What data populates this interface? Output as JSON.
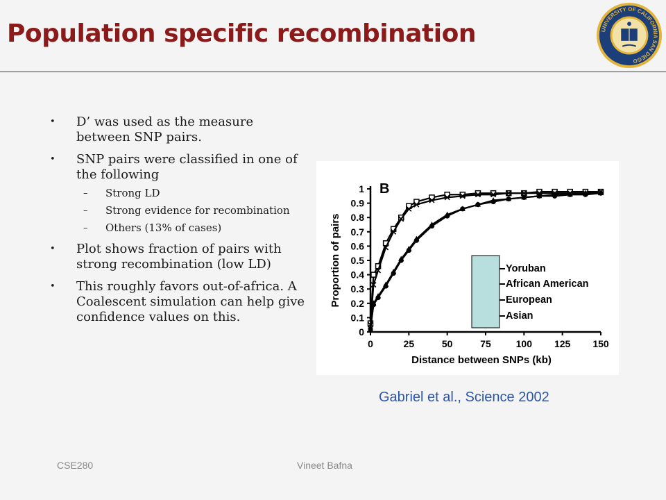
{
  "slide": {
    "title": "Population specific recombination",
    "logo_text": "UNIVERSITY OF CALIFORNIA SAN DIEGO",
    "bullets": [
      {
        "text": "D’ was used as the measure between SNP pairs."
      },
      {
        "text": "SNP pairs were classified in one of the following",
        "sub": [
          "Strong LD",
          "Strong evidence for recombination",
          "Others (13% of cases)"
        ]
      },
      {
        "text": "Plot shows fraction of pairs with strong recombination (low LD)"
      },
      {
        "text": "This roughly favors out-of-africa. A Coalescent simulation can help give confidence values on this."
      }
    ],
    "citation": "Gabriel et al., Science 2002",
    "footer_left": "CSE280",
    "footer_center": "Vineet Bafna",
    "colors": {
      "title": "#8b1a1a",
      "citation": "#2a55a8",
      "legend_box": "#b8dede",
      "logo_blue": "#1c3f7a",
      "logo_gold": "#e2b43b"
    }
  },
  "chart_data": {
    "type": "line",
    "panel_label": "B",
    "xlabel": "Distance between SNPs (kb)",
    "ylabel": "Proportion of pairs",
    "xlim": [
      0,
      150
    ],
    "ylim": [
      0,
      1
    ],
    "xticks": [
      0,
      25,
      50,
      75,
      100,
      125,
      150
    ],
    "yticks": [
      0,
      0.1,
      0.2,
      0.3,
      0.4,
      0.5,
      0.6,
      0.7,
      0.8,
      0.9,
      1
    ],
    "ytick_labels": [
      "0",
      "0.1",
      "0.2",
      "0.3",
      "0.4",
      "0.5",
      "0.6",
      "0.7",
      "0.8",
      "0.9",
      "1"
    ],
    "legend_position": "right",
    "x": [
      0,
      2,
      5,
      10,
      15,
      20,
      25,
      30,
      40,
      50,
      60,
      70,
      80,
      90,
      100,
      110,
      120,
      130,
      140,
      150
    ],
    "series": [
      {
        "name": "Yoruban",
        "marker": "square",
        "values": [
          0.06,
          0.4,
          0.46,
          0.62,
          0.72,
          0.8,
          0.88,
          0.91,
          0.94,
          0.96,
          0.96,
          0.97,
          0.97,
          0.97,
          0.97,
          0.98,
          0.98,
          0.98,
          0.98,
          0.98
        ]
      },
      {
        "name": "African American",
        "marker": "x",
        "values": [
          0.05,
          0.33,
          0.43,
          0.59,
          0.7,
          0.79,
          0.86,
          0.89,
          0.92,
          0.94,
          0.95,
          0.96,
          0.96,
          0.97,
          0.97,
          0.97,
          0.97,
          0.97,
          0.97,
          0.98
        ]
      },
      {
        "name": "European",
        "marker": "triangle",
        "values": [
          0.02,
          0.2,
          0.25,
          0.33,
          0.42,
          0.51,
          0.58,
          0.65,
          0.75,
          0.82,
          0.86,
          0.89,
          0.92,
          0.93,
          0.94,
          0.95,
          0.96,
          0.96,
          0.97,
          0.97
        ]
      },
      {
        "name": "Asian",
        "marker": "circle",
        "values": [
          0.02,
          0.19,
          0.24,
          0.32,
          0.41,
          0.5,
          0.57,
          0.64,
          0.74,
          0.81,
          0.86,
          0.89,
          0.91,
          0.93,
          0.94,
          0.95,
          0.95,
          0.96,
          0.96,
          0.97
        ]
      }
    ]
  }
}
